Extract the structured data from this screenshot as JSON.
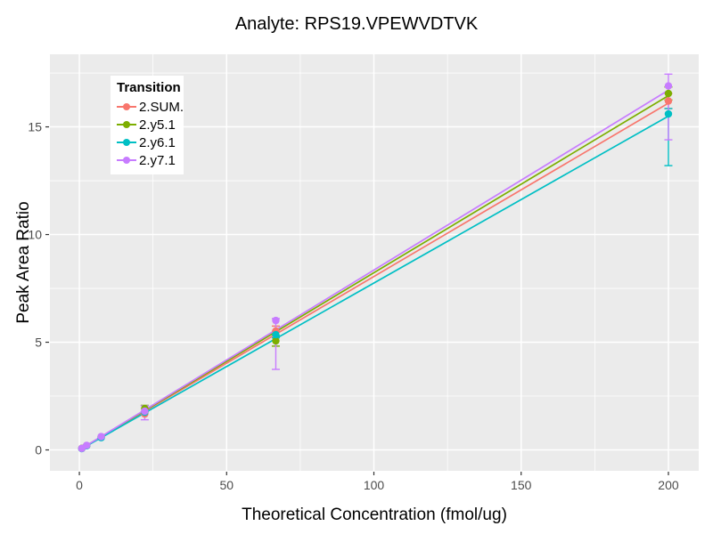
{
  "chart_data": {
    "type": "scatter",
    "title": "Analyte: RPS19.VPEWVDTVK",
    "xlabel": "Theoretical Concentration (fmol/ug)",
    "ylabel": "Peak Area Ratio",
    "legend_title": "Transition",
    "legend_position": "inside-top-left",
    "grid": "on",
    "panel_bg": "#EBEBEB",
    "grid_color": "#FFFFFF",
    "tick_label_color": "#4D4D4D",
    "tick_mark_color": "#333333",
    "xlim": [
      -10,
      210.3
    ],
    "ylim": [
      -0.97,
      18.37
    ],
    "x_ticks": [
      0,
      50,
      100,
      150,
      200
    ],
    "x_minor_ticks": [
      25,
      75,
      125,
      175
    ],
    "y_ticks": [
      0,
      5,
      10,
      15
    ],
    "y_minor_ticks": [
      2.5,
      7.5,
      12.5,
      17.5
    ],
    "x": [
      0.82,
      2.47,
      7.41,
      22.2,
      66.7,
      200
    ],
    "series": [
      {
        "name": "2.SUM.",
        "color": "#F8766D",
        "values": [
          0.07,
          0.2,
          0.6,
          1.67,
          5.52,
          16.2
        ],
        "line": [
          0.82,
          0.07,
          200,
          16.1
        ],
        "errors": [
          {
            "x": 66.7,
            "lo": 5.3,
            "hi": 5.75
          },
          {
            "x": 200,
            "lo": 15.85,
            "hi": 16.55
          }
        ]
      },
      {
        "name": "2.y5.1",
        "color": "#7CAE00",
        "values": [
          0.07,
          0.2,
          0.61,
          1.92,
          5.06,
          16.55
        ],
        "line": [
          0.82,
          0.07,
          200,
          16.45
        ],
        "errors": [
          {
            "x": 22.2,
            "lo": 1.78,
            "hi": 2.07
          },
          {
            "x": 66.7,
            "lo": 4.82,
            "hi": 5.3
          },
          {
            "x": 200,
            "lo": 16.25,
            "hi": 16.85
          }
        ]
      },
      {
        "name": "2.y6.1",
        "color": "#00BFC4",
        "values": [
          0.06,
          0.19,
          0.57,
          1.75,
          5.35,
          15.6
        ],
        "line": [
          0.82,
          0.06,
          200,
          15.5
        ],
        "errors": [
          {
            "x": 66.7,
            "lo": 5.2,
            "hi": 5.5
          },
          {
            "x": 200,
            "lo": 13.2,
            "hi": 15.85
          }
        ]
      },
      {
        "name": "2.y7.1",
        "color": "#C77CFF",
        "values": [
          0.07,
          0.21,
          0.62,
          1.8,
          6.01,
          16.9
        ],
        "line": [
          0.82,
          0.07,
          200,
          16.7
        ],
        "errors": [
          {
            "x": 22.2,
            "lo": 1.4,
            "hi": 2.05
          },
          {
            "x": 66.7,
            "lo": 3.74,
            "hi": 6.1
          },
          {
            "x": 200,
            "lo": 14.4,
            "hi": 17.45
          }
        ]
      }
    ]
  }
}
